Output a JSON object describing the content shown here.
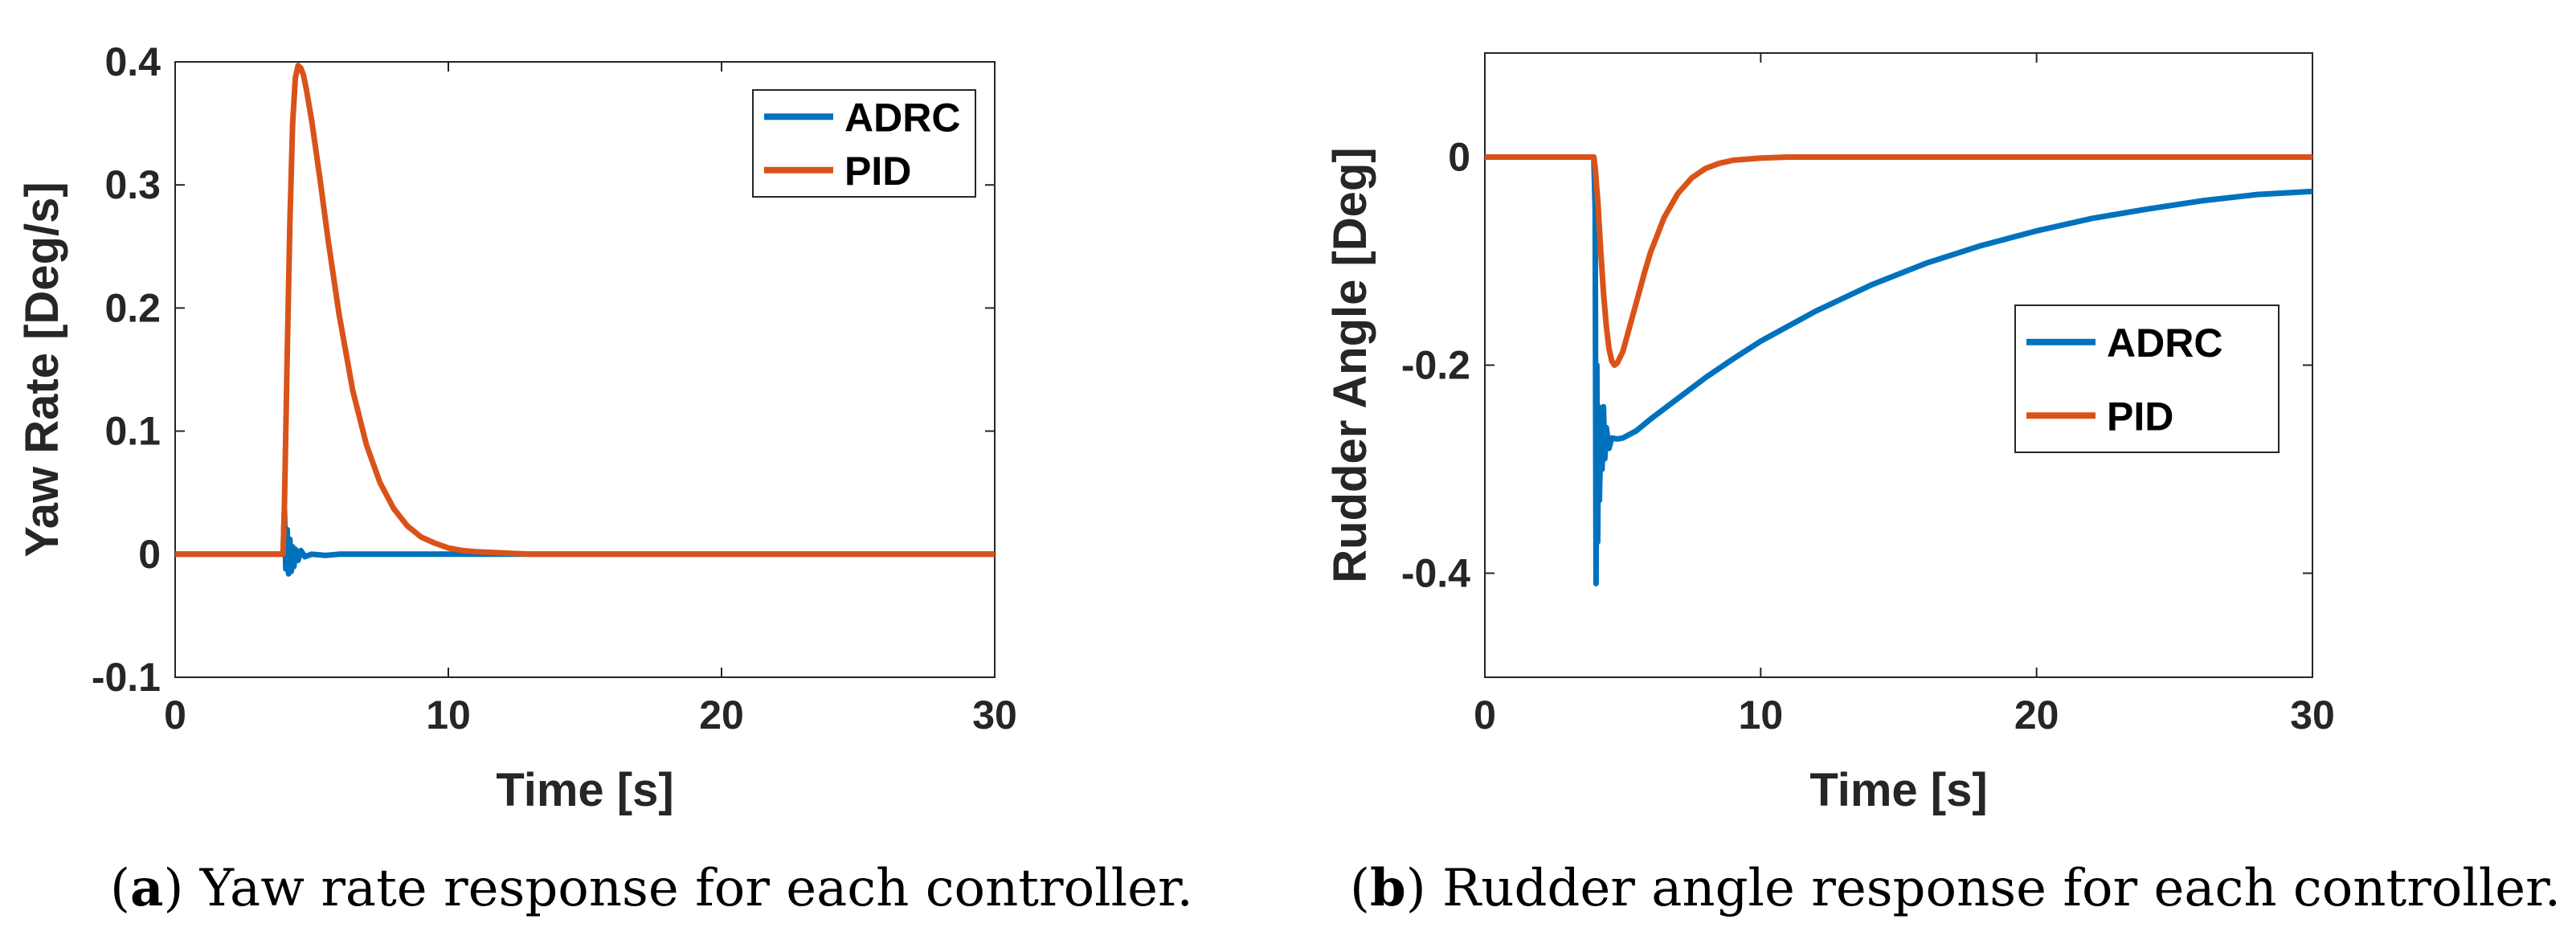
{
  "chart_data": [
    {
      "type": "line",
      "title": "",
      "xlabel": "Time [s]",
      "ylabel": "Yaw Rate [Deg/s]",
      "xlim": [
        0,
        30
      ],
      "ylim": [
        -0.1,
        0.4
      ],
      "xticks": [
        0,
        10,
        20,
        30
      ],
      "xtick_labels": [
        "0",
        "10",
        "20",
        "30"
      ],
      "yticks": [
        -0.1,
        0,
        0.1,
        0.2,
        0.3,
        0.4
      ],
      "ytick_labels": [
        "-0.1",
        "0",
        "0.1",
        "0.2",
        "0.3",
        "0.4"
      ],
      "grid": false,
      "legend_position": "top-right",
      "series": [
        {
          "name": "ADRC",
          "color": "#0072BD",
          "x": [
            0,
            3.95,
            4.0,
            4.05,
            4.1,
            4.15,
            4.2,
            4.25,
            4.3,
            4.35,
            4.4,
            4.5,
            4.6,
            4.75,
            5.0,
            5.5,
            6.0,
            30
          ],
          "y": [
            0,
            0,
            0.036,
            -0.012,
            0.02,
            -0.016,
            0.012,
            -0.014,
            0.006,
            -0.01,
            0.004,
            -0.005,
            0.003,
            -0.002,
            0.0,
            -0.001,
            0,
            0
          ]
        },
        {
          "name": "PID",
          "color": "#D95319",
          "x": [
            0,
            3.95,
            4.0,
            4.1,
            4.2,
            4.3,
            4.4,
            4.5,
            4.6,
            4.7,
            4.8,
            5.0,
            5.3,
            5.6,
            6.0,
            6.5,
            7.0,
            7.5,
            8.0,
            8.5,
            9.0,
            9.5,
            10.0,
            10.5,
            11.0,
            12.0,
            13.0,
            14.0,
            30
          ],
          "y": [
            0,
            0,
            0.04,
            0.16,
            0.27,
            0.35,
            0.387,
            0.397,
            0.395,
            0.389,
            0.378,
            0.352,
            0.305,
            0.255,
            0.195,
            0.133,
            0.089,
            0.058,
            0.037,
            0.023,
            0.014,
            0.009,
            0.005,
            0.003,
            0.002,
            0.001,
            0.0,
            0,
            0
          ]
        }
      ],
      "caption_label": "a",
      "caption_text": "Yaw rate response for each controller."
    },
    {
      "type": "line",
      "title": "",
      "xlabel": "Time [s]",
      "ylabel": "Rudder Angle [Deg]",
      "xlim": [
        0,
        30
      ],
      "ylim": [
        -0.5,
        0.1
      ],
      "xticks": [
        0,
        10,
        20,
        30
      ],
      "xtick_labels": [
        "0",
        "10",
        "20",
        "30"
      ],
      "yticks": [
        -0.4,
        -0.2,
        0
      ],
      "ytick_labels": [
        "-0.4",
        "-0.2",
        "0"
      ],
      "grid": false,
      "legend_position": "middle-right",
      "series": [
        {
          "name": "ADRC",
          "color": "#0072BD",
          "x": [
            0,
            3.95,
            4.0,
            4.03,
            4.06,
            4.09,
            4.12,
            4.15,
            4.2,
            4.25,
            4.3,
            4.35,
            4.4,
            4.5,
            4.6,
            4.8,
            5.0,
            5.5,
            6,
            7,
            8,
            9,
            10,
            12,
            14,
            16,
            18,
            20,
            22,
            24,
            26,
            28,
            30
          ],
          "y": [
            0,
            0,
            -0.05,
            -0.41,
            -0.2,
            -0.37,
            -0.24,
            -0.33,
            -0.27,
            -0.3,
            -0.24,
            -0.29,
            -0.26,
            -0.28,
            -0.27,
            -0.271,
            -0.27,
            -0.263,
            -0.252,
            -0.232,
            -0.212,
            -0.194,
            -0.177,
            -0.148,
            -0.123,
            -0.102,
            -0.085,
            -0.071,
            -0.059,
            -0.05,
            -0.042,
            -0.036,
            -0.033
          ]
        },
        {
          "name": "PID",
          "color": "#D95319",
          "x": [
            0,
            3.95,
            4.0,
            4.1,
            4.2,
            4.3,
            4.4,
            4.5,
            4.6,
            4.7,
            4.8,
            5.0,
            5.2,
            5.5,
            5.8,
            6.0,
            6.5,
            7.0,
            7.5,
            8.0,
            8.5,
            9.0,
            9.5,
            10.0,
            11.0,
            12.0,
            30
          ],
          "y": [
            0,
            0,
            -0.01,
            -0.045,
            -0.09,
            -0.13,
            -0.162,
            -0.184,
            -0.196,
            -0.2,
            -0.198,
            -0.187,
            -0.168,
            -0.139,
            -0.11,
            -0.092,
            -0.058,
            -0.035,
            -0.02,
            -0.011,
            -0.006,
            -0.003,
            -0.002,
            -0.001,
            0,
            0,
            0
          ]
        }
      ],
      "caption_label": "b",
      "caption_text": "Rudder angle response for each controller."
    }
  ]
}
